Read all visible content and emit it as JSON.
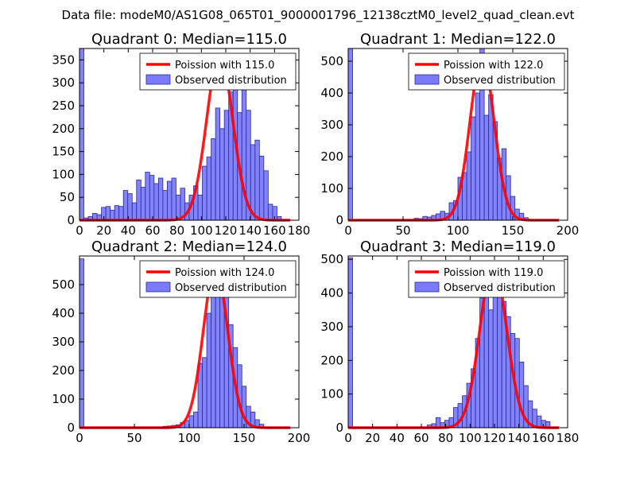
{
  "suptitle": "Data file: modeM0/AS1G08_065T01_9000001796_12138cztM0_level2_quad_clean.evt",
  "colors": {
    "bar_fill": "#7b7bfa",
    "bar_edge": "#2a2a9a",
    "line": "#ff0000",
    "axes": "#000000"
  },
  "chart_data": [
    {
      "type": "bar",
      "title": "Quadrant 0: Median=115.0",
      "xlim": [
        0,
        180
      ],
      "ylim": [
        0,
        375
      ],
      "xticks": [
        0,
        20,
        40,
        60,
        80,
        100,
        120,
        140,
        160,
        180
      ],
      "yticks": [
        0,
        50,
        100,
        150,
        200,
        250,
        300,
        350
      ],
      "legend": [
        "Poission with 115.0",
        "Observed distribution"
      ],
      "bin_width": 3.6,
      "bins": [
        [
          0,
          375
        ],
        [
          3.6,
          5
        ],
        [
          7.2,
          8
        ],
        [
          10.8,
          15
        ],
        [
          14.4,
          12
        ],
        [
          18,
          28
        ],
        [
          21.6,
          30
        ],
        [
          25.2,
          22
        ],
        [
          28.8,
          32
        ],
        [
          32.4,
          30
        ],
        [
          36,
          65
        ],
        [
          39.6,
          58
        ],
        [
          43.2,
          38
        ],
        [
          46.8,
          88
        ],
        [
          50.4,
          72
        ],
        [
          54,
          105
        ],
        [
          57.6,
          98
        ],
        [
          61.2,
          80
        ],
        [
          64.8,
          92
        ],
        [
          68.4,
          65
        ],
        [
          72,
          85
        ],
        [
          75.6,
          92
        ],
        [
          79.2,
          55
        ],
        [
          82.8,
          70
        ],
        [
          86.4,
          38
        ],
        [
          90,
          55
        ],
        [
          93.6,
          75
        ],
        [
          97.2,
          55
        ],
        [
          100.8,
          118
        ],
        [
          104.4,
          138
        ],
        [
          108,
          178
        ],
        [
          111.6,
          245
        ],
        [
          115.2,
          200
        ],
        [
          118.8,
          240
        ],
        [
          122.4,
          280
        ],
        [
          126,
          295
        ],
        [
          129.6,
          235
        ],
        [
          133.2,
          290
        ],
        [
          136.8,
          240
        ],
        [
          140.4,
          165
        ],
        [
          144,
          175
        ],
        [
          147.6,
          140
        ],
        [
          151.2,
          108
        ],
        [
          154.8,
          35
        ],
        [
          158.4,
          30
        ],
        [
          162,
          8
        ]
      ],
      "poisson": {
        "mu": 115.0,
        "peak": 362
      }
    },
    {
      "type": "bar",
      "title": "Quadrant 1: Median=122.0",
      "xlim": [
        0,
        200
      ],
      "ylim": [
        0,
        540
      ],
      "xticks": [
        0,
        50,
        100,
        150,
        200
      ],
      "yticks": [
        0,
        100,
        200,
        300,
        400,
        500
      ],
      "legend": [
        "Poission with 122.0",
        "Observed distribution"
      ],
      "bin_width": 4.0,
      "bins": [
        [
          0,
          540
        ],
        [
          60,
          6
        ],
        [
          64,
          5
        ],
        [
          68,
          12
        ],
        [
          72,
          10
        ],
        [
          76,
          15
        ],
        [
          80,
          20
        ],
        [
          84,
          28
        ],
        [
          88,
          22
        ],
        [
          92,
          55
        ],
        [
          96,
          62
        ],
        [
          100,
          135
        ],
        [
          104,
          150
        ],
        [
          108,
          215
        ],
        [
          112,
          325
        ],
        [
          116,
          400
        ],
        [
          120,
          540
        ],
        [
          124,
          330
        ],
        [
          128,
          395
        ],
        [
          132,
          310
        ],
        [
          136,
          195
        ],
        [
          140,
          225
        ],
        [
          144,
          140
        ],
        [
          148,
          75
        ],
        [
          152,
          35
        ],
        [
          156,
          22
        ],
        [
          160,
          8
        ]
      ],
      "poisson": {
        "mu": 122.0,
        "peak": 512
      }
    },
    {
      "type": "bar",
      "title": "Quadrant 2: Median=124.0",
      "xlim": [
        0,
        200
      ],
      "ylim": [
        0,
        600
      ],
      "xticks": [
        0,
        50,
        100,
        150,
        200
      ],
      "yticks": [
        0,
        100,
        200,
        300,
        400,
        500
      ],
      "legend": [
        "Poission with 124.0",
        "Observed distribution"
      ],
      "bin_width": 4.0,
      "bins": [
        [
          0,
          590
        ],
        [
          76,
          5
        ],
        [
          80,
          6
        ],
        [
          84,
          8
        ],
        [
          88,
          10
        ],
        [
          92,
          18
        ],
        [
          96,
          25
        ],
        [
          100,
          42
        ],
        [
          104,
          55
        ],
        [
          108,
          225
        ],
        [
          112,
          245
        ],
        [
          116,
          400
        ],
        [
          120,
          480
        ],
        [
          124,
          545
        ],
        [
          128,
          555
        ],
        [
          132,
          460
        ],
        [
          136,
          360
        ],
        [
          140,
          280
        ],
        [
          144,
          220
        ],
        [
          148,
          145
        ],
        [
          152,
          75
        ],
        [
          156,
          55
        ],
        [
          160,
          28
        ],
        [
          164,
          12
        ]
      ],
      "poisson": {
        "mu": 124.0,
        "peak": 560
      }
    },
    {
      "type": "bar",
      "title": "Quadrant 3: Median=119.0",
      "xlim": [
        0,
        180
      ],
      "ylim": [
        0,
        510
      ],
      "xticks": [
        0,
        20,
        40,
        60,
        80,
        100,
        120,
        140,
        160,
        180
      ],
      "yticks": [
        0,
        100,
        200,
        300,
        400,
        500
      ],
      "legend": [
        "Poission with 119.0",
        "Observed distribution"
      ],
      "bin_width": 3.6,
      "bins": [
        [
          0,
          505
        ],
        [
          64.8,
          8
        ],
        [
          68.4,
          12
        ],
        [
          72,
          30
        ],
        [
          75.6,
          15
        ],
        [
          79.2,
          22
        ],
        [
          82.8,
          30
        ],
        [
          86.4,
          60
        ],
        [
          90,
          72
        ],
        [
          93.6,
          95
        ],
        [
          97.2,
          132
        ],
        [
          100.8,
          175
        ],
        [
          104.4,
          265
        ],
        [
          108,
          385
        ],
        [
          111.6,
          490
        ],
        [
          115.2,
          350
        ],
        [
          118.8,
          475
        ],
        [
          122.4,
          425
        ],
        [
          126,
          375
        ],
        [
          129.6,
          330
        ],
        [
          133.2,
          280
        ],
        [
          136.8,
          265
        ],
        [
          140.4,
          195
        ],
        [
          144,
          125
        ],
        [
          147.6,
          80
        ],
        [
          151.2,
          55
        ],
        [
          154.8,
          35
        ],
        [
          158.4,
          22
        ],
        [
          162,
          18
        ]
      ],
      "poisson": {
        "mu": 119.0,
        "peak": 488
      }
    }
  ]
}
